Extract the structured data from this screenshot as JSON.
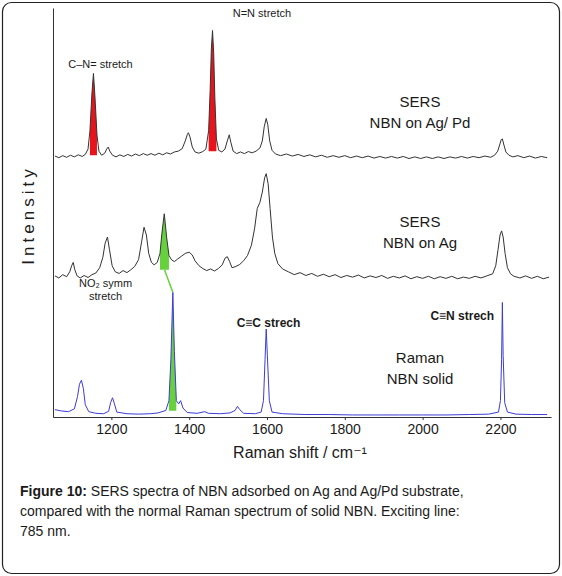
{
  "chart_data": {
    "type": "line",
    "xlabel": "Raman shift / cm⁻¹",
    "ylabel": "Intensity",
    "xlim": [
      1050,
      2330
    ],
    "ylim": [
      0,
      100
    ],
    "xticks": [
      1200,
      1400,
      1600,
      1800,
      2000,
      2200
    ],
    "yticks": [],
    "tick_labels": "x",
    "grid": false,
    "series": [
      {
        "name": "SERS\nNBN on Ag/ Pd",
        "color": "#333333",
        "x": [
          1055,
          1065,
          1075,
          1085,
          1095,
          1105,
          1115,
          1125,
          1133,
          1140,
          1145,
          1150,
          1154,
          1158,
          1163,
          1168,
          1175,
          1183,
          1188,
          1192,
          1196,
          1203,
          1212,
          1222,
          1232,
          1242,
          1252,
          1262,
          1272,
          1282,
          1292,
          1302,
          1312,
          1322,
          1332,
          1342,
          1352,
          1362,
          1372,
          1382,
          1390,
          1395,
          1398,
          1402,
          1408,
          1415,
          1425,
          1435,
          1443,
          1450,
          1454,
          1457,
          1460,
          1463,
          1466,
          1470,
          1476,
          1484,
          1492,
          1498,
          1503,
          1507,
          1513,
          1522,
          1532,
          1542,
          1552,
          1562,
          1572,
          1582,
          1588,
          1593,
          1598,
          1602,
          1607,
          1613,
          1622,
          1635,
          1650,
          1665,
          1680,
          1695,
          1710,
          1725,
          1740,
          1755,
          1770,
          1785,
          1800,
          1815,
          1830,
          1845,
          1860,
          1875,
          1890,
          1905,
          1920,
          1935,
          1950,
          1965,
          1980,
          1995,
          2010,
          2025,
          2040,
          2055,
          2070,
          2085,
          2100,
          2115,
          2130,
          2145,
          2160,
          2175,
          2185,
          2193,
          2198,
          2202,
          2205,
          2209,
          2214,
          2222,
          2232,
          2245,
          2260,
          2275,
          2290,
          2305,
          2320
        ],
        "values": [
          63.8,
          63.4,
          63.9,
          63.5,
          64,
          63.6,
          64.1,
          63.7,
          64.2,
          65.5,
          70,
          79,
          84,
          78,
          69,
          65,
          64,
          64.5,
          65.5,
          66,
          65,
          64,
          63.6,
          64.1,
          63.7,
          64.2,
          63.8,
          64.3,
          63.9,
          64.4,
          64,
          64.4,
          64,
          64.5,
          64.1,
          64.6,
          64.3,
          64.8,
          65,
          65.6,
          67.5,
          69,
          69.5,
          68.5,
          66,
          64.8,
          64.5,
          64.9,
          65.5,
          70,
          80,
          90,
          94.5,
          89,
          78,
          68,
          65.2,
          64.8,
          65.5,
          67.5,
          69,
          67.2,
          65,
          64.4,
          64.8,
          64.4,
          64.9,
          64.6,
          65,
          65.8,
          67.5,
          71,
          73,
          71.5,
          67.5,
          65.2,
          64.3,
          63.9,
          64.3,
          63.8,
          64.2,
          63.7,
          64.1,
          63.6,
          64,
          63.5,
          63.9,
          63.5,
          63.9,
          63.4,
          63.8,
          63.4,
          63.8,
          63.3,
          63.7,
          63.3,
          63.7,
          63.3,
          63.7,
          63.2,
          63.6,
          63.2,
          63.6,
          63.2,
          63.6,
          63.2,
          63.6,
          63.3,
          63.7,
          63.3,
          63.7,
          63.4,
          63.8,
          63.5,
          64,
          65,
          66.5,
          67.8,
          68,
          66.5,
          64.8,
          64,
          63.6,
          63.9,
          63.4,
          63.8,
          63.3,
          63.7,
          63.4
        ]
      },
      {
        "name": "SERS\nNBN on Ag",
        "color": "#333333",
        "x": [
          1055,
          1065,
          1075,
          1085,
          1093,
          1098,
          1102,
          1106,
          1112,
          1120,
          1130,
          1140,
          1150,
          1160,
          1170,
          1178,
          1184,
          1190,
          1195,
          1202,
          1210,
          1220,
          1230,
          1240,
          1250,
          1260,
          1270,
          1278,
          1284,
          1290,
          1296,
          1303,
          1310,
          1318,
          1325,
          1330,
          1336,
          1342,
          1348,
          1355,
          1362,
          1370,
          1380,
          1390,
          1400,
          1408,
          1415,
          1425,
          1435,
          1445,
          1455,
          1465,
          1475,
          1485,
          1492,
          1498,
          1504,
          1510,
          1520,
          1530,
          1540,
          1550,
          1560,
          1568,
          1575,
          1582,
          1588,
          1594,
          1598,
          1603,
          1608,
          1614,
          1620,
          1628,
          1640,
          1655,
          1670,
          1685,
          1700,
          1715,
          1730,
          1745,
          1760,
          1775,
          1790,
          1805,
          1820,
          1835,
          1850,
          1865,
          1880,
          1895,
          1910,
          1925,
          1940,
          1955,
          1970,
          1985,
          2000,
          2015,
          2030,
          2045,
          2060,
          2075,
          2090,
          2105,
          2120,
          2135,
          2150,
          2165,
          2180,
          2188,
          2194,
          2199,
          2203,
          2207,
          2212,
          2218,
          2226,
          2235,
          2250,
          2265,
          2280,
          2295,
          2310,
          2325
        ],
        "values": [
          34.5,
          34,
          34.8,
          34.3,
          35.5,
          37,
          37.8,
          36,
          34.5,
          34,
          34.6,
          34.1,
          34.8,
          35.2,
          36.5,
          39,
          42.5,
          44,
          41,
          37,
          35.5,
          35.1,
          35.8,
          35.3,
          36,
          36.8,
          38.5,
          43,
          46.4,
          44.5,
          40,
          37.8,
          37.2,
          37.8,
          40,
          45,
          49.7,
          44,
          39.5,
          38.4,
          38,
          38.6,
          39.3,
          40,
          40.3,
          39.6,
          38.2,
          37,
          36.3,
          35.8,
          36.2,
          35.7,
          36.3,
          37.2,
          38.8,
          39.2,
          38,
          36.5,
          36.8,
          37.3,
          38.2,
          39.5,
          42,
          46,
          51,
          52.5,
          55,
          58.5,
          59.5,
          57,
          51,
          44,
          40,
          37.5,
          36.2,
          35.5,
          34.8,
          35.3,
          34.6,
          35.1,
          34.4,
          34.9,
          34.3,
          34.8,
          34.1,
          34.6,
          34.2,
          34.7,
          34,
          34.5,
          34.1,
          34.6,
          33.9,
          34.4,
          34,
          34.5,
          33.8,
          34.3,
          33.9,
          34.4,
          33.8,
          34.3,
          33.9,
          34.4,
          33.8,
          34.2,
          33.9,
          34.4,
          34,
          34.5,
          35,
          37,
          41,
          44.5,
          45.5,
          44,
          40,
          36.5,
          35,
          34.4,
          34,
          34.5,
          33.9,
          34.4,
          33.8,
          34.2
        ]
      },
      {
        "name": "Raman\nNBN solid",
        "color": "#3c3cd4",
        "x": [
          1055,
          1070,
          1090,
          1105,
          1113,
          1118,
          1123,
          1128,
          1133,
          1142,
          1160,
          1180,
          1193,
          1198,
          1203,
          1208,
          1214,
          1240,
          1270,
          1300,
          1320,
          1340,
          1348,
          1353,
          1358,
          1362,
          1367,
          1373,
          1378,
          1384,
          1395,
          1420,
          1440,
          1450,
          1480,
          1505,
          1518,
          1524,
          1530,
          1540,
          1570,
          1585,
          1591,
          1595,
          1598,
          1601,
          1606,
          1613,
          1640,
          1700,
          1760,
          1820,
          1880,
          1940,
          2000,
          2060,
          2120,
          2170,
          2195,
          2200,
          2203,
          2205,
          2207,
          2211,
          2218,
          2240,
          2280,
          2320
        ],
        "values": [
          1.8,
          1.5,
          1.3,
          2,
          5,
          8,
          9,
          7,
          3,
          1.3,
          0.9,
          0.8,
          1.4,
          3.5,
          4.7,
          3.2,
          1.2,
          0.8,
          0.7,
          0.8,
          1,
          1.6,
          4,
          14,
          30.5,
          16,
          4,
          3.2,
          4,
          2.2,
          1.1,
          0.9,
          1.3,
          0.9,
          0.8,
          1,
          1.6,
          2.6,
          1.8,
          0.9,
          0.8,
          1.2,
          4,
          14,
          21.5,
          15,
          4,
          1.2,
          0.8,
          0.6,
          0.6,
          0.5,
          0.5,
          0.5,
          0.5,
          0.5,
          0.6,
          0.7,
          1.2,
          4,
          14,
          28,
          15,
          3.5,
          1.2,
          0.7,
          0.6,
          0.6
        ]
      }
    ],
    "annotations": [
      {
        "text": "C–N= stretch",
        "x": 1172,
        "y": 85.3
      },
      {
        "text": "N=N stretch",
        "x": 1587,
        "y": 97.8
      },
      {
        "text": "NO₂ symm\nstretch",
        "x": 1185,
        "y": 31.8
      },
      {
        "text": "C≡C strech",
        "x": 1604,
        "y": 22
      },
      {
        "text": "C≡N strech",
        "x": 2102,
        "y": 23.7
      }
    ],
    "highlights": [
      {
        "series": 0,
        "x": [
          1143,
          1165
        ],
        "baseline": 64,
        "color": "#e8141b"
      },
      {
        "series": 0,
        "x": [
          1447,
          1473
        ],
        "baseline": 65,
        "color": "#e8141b"
      },
      {
        "series": 1,
        "x": [
          1324,
          1349
        ],
        "baseline": 36,
        "color": "#66d13c"
      },
      {
        "series": 2,
        "x": [
          1346,
          1369
        ],
        "baseline": 1.5,
        "color": "#66d13c"
      }
    ],
    "connector": [
      2,
      3
    ],
    "caption": {
      "label": "Figure 10:",
      "lines": [
        "SERS spectra of NBN adsorbed on Ag and Ag/Pd substrate,",
        "compared with the normal Raman spectrum of solid NBN. Exciting line:",
        "785 nm."
      ]
    }
  }
}
